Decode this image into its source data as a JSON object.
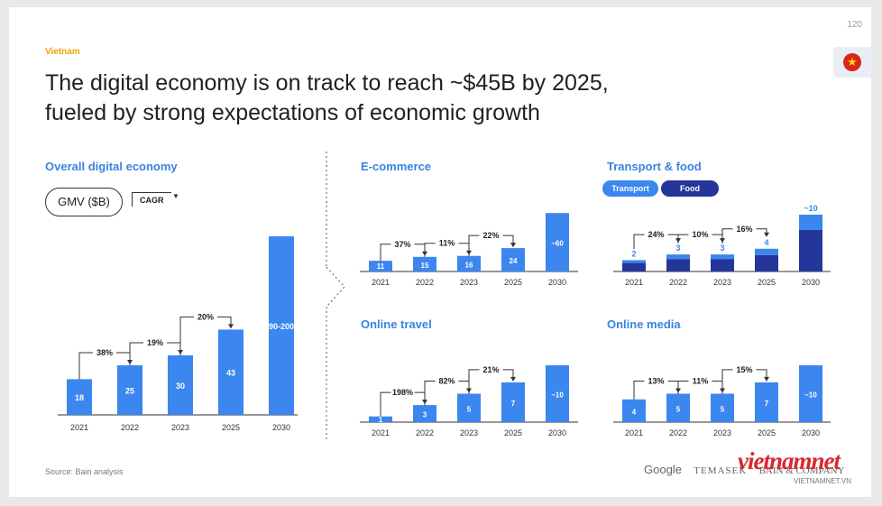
{
  "header": {
    "eyebrow": "Vietnam",
    "headline_line1": "The digital economy is on track to reach ~$45B by 2025,",
    "headline_line2": "fueled by strong expectations of economic growth",
    "page_number": "120",
    "flag_icon": "vietnam-flag-icon"
  },
  "legend": {
    "gmv": "GMV ($B)",
    "cagr": "CAGR",
    "transport": "Transport",
    "food": "Food"
  },
  "colors": {
    "primary": "#3c86ef",
    "dark": "#25369a",
    "eyebrow": "#f2a400",
    "title": "#3b82e0"
  },
  "footer": {
    "source": "Source: Bain analysis",
    "logo_google": "Google",
    "logo_temasek": "TEMASEK",
    "logo_bain": "BAIN & COMPANY",
    "watermark": "vietnamnet",
    "watermark_sub": "VIETNAMNET.VN"
  },
  "chart_data": [
    {
      "id": "overall",
      "type": "bar",
      "title": "Overall digital economy",
      "categories": [
        "2021",
        "2022",
        "2023",
        "2025",
        "2030"
      ],
      "values": [
        18,
        25,
        30,
        43,
        90
      ],
      "labels": [
        "18",
        "25",
        "30",
        "43",
        "90-200"
      ],
      "cagr": [
        {
          "from": 0,
          "to": 1,
          "label": "38%"
        },
        {
          "from": 1,
          "to": 2,
          "label": "19%"
        },
        {
          "from": 2,
          "to": 3,
          "label": "20%"
        }
      ]
    },
    {
      "id": "ecommerce",
      "type": "bar",
      "title": "E-commerce",
      "categories": [
        "2021",
        "2022",
        "2023",
        "2025",
        "2030"
      ],
      "values": [
        11,
        15,
        16,
        24,
        60
      ],
      "labels": [
        "11",
        "15",
        "16",
        "24",
        "~60"
      ],
      "cagr": [
        {
          "from": 0,
          "to": 1,
          "label": "37%"
        },
        {
          "from": 1,
          "to": 2,
          "label": "11%"
        },
        {
          "from": 2,
          "to": 3,
          "label": "22%"
        }
      ]
    },
    {
      "id": "transport",
      "type": "bar",
      "title": "Transport & food",
      "stacked": true,
      "categories": [
        "2021",
        "2022",
        "2023",
        "2025",
        "2030"
      ],
      "series": [
        {
          "name": "Food",
          "values": [
            1.5,
            2.2,
            2.2,
            2.9,
            7.3
          ]
        },
        {
          "name": "Transport",
          "values": [
            0.5,
            0.8,
            0.8,
            1.1,
            2.7
          ]
        }
      ],
      "totals": [
        2,
        3,
        3,
        4,
        10
      ],
      "labels": [
        "2",
        "3",
        "3",
        "4",
        "~10"
      ],
      "cagr": [
        {
          "from": 0,
          "to": 1,
          "label": "24%"
        },
        {
          "from": 1,
          "to": 2,
          "label": "10%"
        },
        {
          "from": 2,
          "to": 3,
          "label": "16%"
        }
      ]
    },
    {
      "id": "travel",
      "type": "bar",
      "title": "Online travel",
      "categories": [
        "2021",
        "2022",
        "2023",
        "2025",
        "2030"
      ],
      "values": [
        1,
        3,
        5,
        7,
        10
      ],
      "labels": [
        "1",
        "3",
        "5",
        "7",
        "~10"
      ],
      "cagr": [
        {
          "from": 0,
          "to": 1,
          "label": "198%"
        },
        {
          "from": 1,
          "to": 2,
          "label": "82%"
        },
        {
          "from": 2,
          "to": 3,
          "label": "21%"
        }
      ]
    },
    {
      "id": "media",
      "type": "bar",
      "title": "Online media",
      "categories": [
        "2021",
        "2022",
        "2023",
        "2025",
        "2030"
      ],
      "values": [
        4,
        5,
        5,
        7,
        10
      ],
      "labels": [
        "4",
        "5",
        "5",
        "7",
        "~10"
      ],
      "cagr": [
        {
          "from": 0,
          "to": 1,
          "label": "13%"
        },
        {
          "from": 1,
          "to": 2,
          "label": "11%"
        },
        {
          "from": 2,
          "to": 3,
          "label": "15%"
        }
      ]
    }
  ]
}
